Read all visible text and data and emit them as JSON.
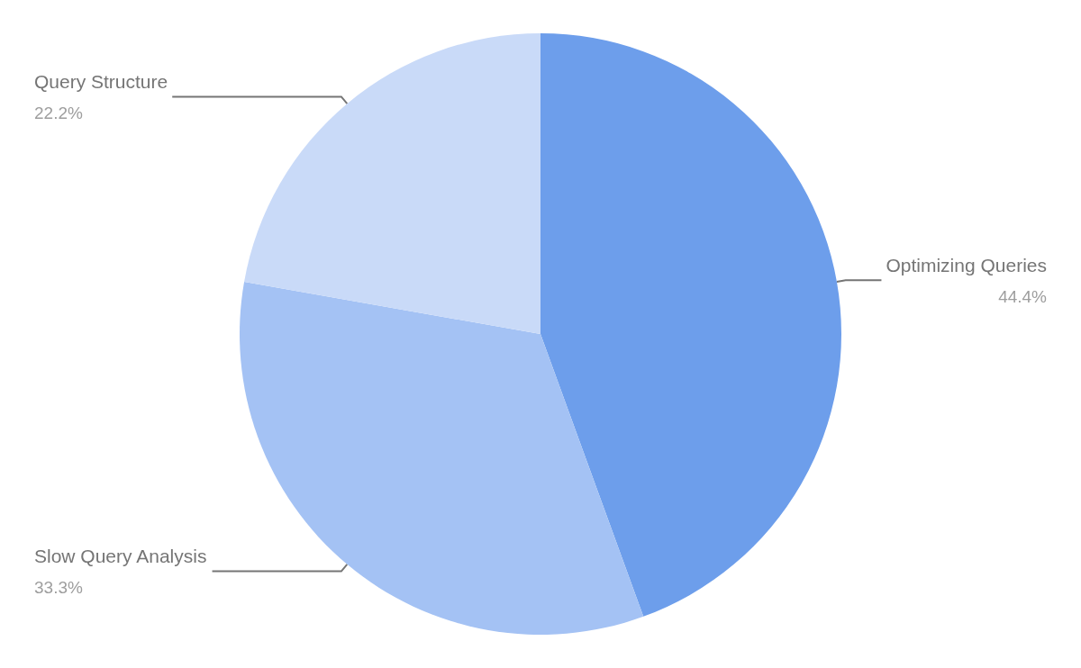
{
  "chart_data": {
    "type": "pie",
    "categories": [
      "Optimizing Queries",
      "Slow Query Analysis",
      "Query Structure"
    ],
    "values": [
      44.4,
      33.3,
      22.2
    ],
    "value_labels": [
      "44.4%",
      "33.3%",
      "22.2%"
    ],
    "colors": [
      "#6d9eeb",
      "#a4c2f4",
      "#c9daf8"
    ],
    "legend": false
  }
}
